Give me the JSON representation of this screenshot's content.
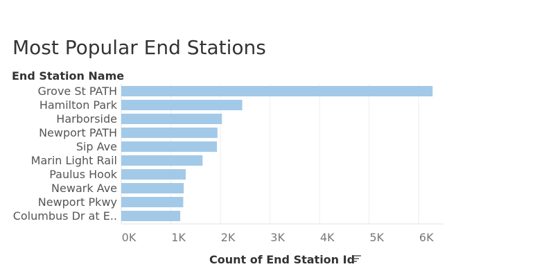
{
  "chart_data": {
    "type": "bar",
    "orientation": "horizontal",
    "title": "Most Popular End Stations",
    "row_header": "End Station Name",
    "xlabel": "Count of End Station Id",
    "categories": [
      "Grove St PATH",
      "Hamilton Park",
      "Harborside",
      "Newport PATH",
      "Sip Ave",
      "Marin Light Rail",
      "Paulus Hook",
      "Newark Ave",
      "Newport Pkwy",
      "Columbus Dr at E.."
    ],
    "values": [
      6280,
      2440,
      2030,
      1940,
      1930,
      1640,
      1300,
      1260,
      1250,
      1190
    ],
    "xlim": [
      0,
      6500
    ],
    "xticks": [
      0,
      1000,
      2000,
      3000,
      4000,
      5000,
      6000
    ],
    "xtick_labels": [
      "0K",
      "1K",
      "2K",
      "3K",
      "4K",
      "5K",
      "6K"
    ],
    "grid": true,
    "bar_color": "#a3c9e8",
    "sort_icon": "sort-descending-icon"
  }
}
